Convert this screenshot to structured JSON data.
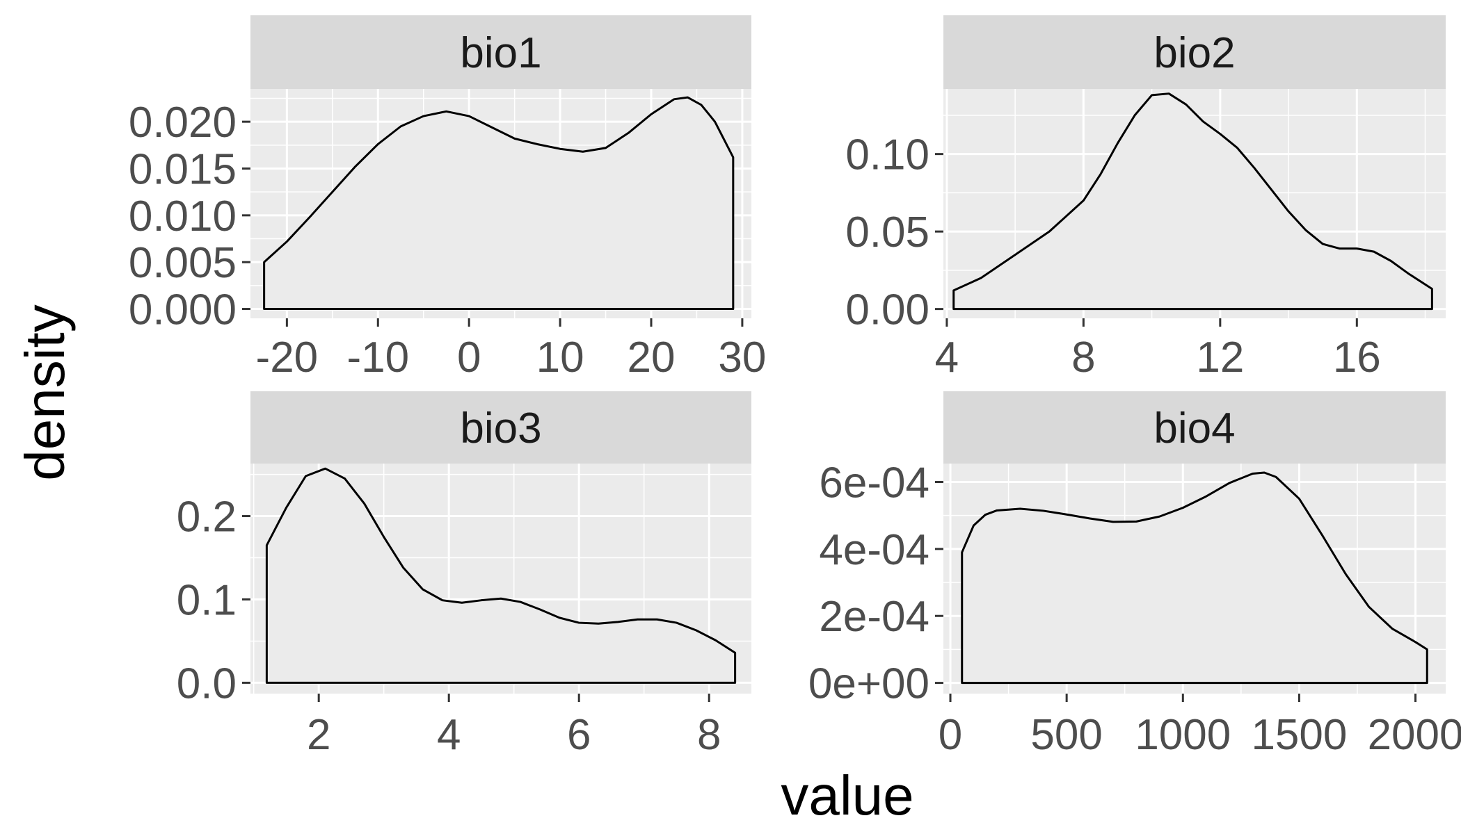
{
  "figure": {
    "xlabel": "value",
    "ylabel": "density"
  },
  "chart_data": [
    {
      "type": "area",
      "title": "bio1",
      "xlim": [
        -24,
        31
      ],
      "ylim": [
        -0.001,
        0.0235
      ],
      "x_ticks": [
        -20,
        -10,
        0,
        10,
        20,
        30
      ],
      "x_tick_labels": [
        "-20",
        "-10",
        "0",
        "10",
        "20",
        "30"
      ],
      "y_ticks": [
        0,
        0.005,
        0.01,
        0.015,
        0.02
      ],
      "y_tick_labels": [
        "0.000",
        "0.005",
        "0.010",
        "0.015",
        "0.020"
      ],
      "x": [
        -22.5,
        -20,
        -17.5,
        -15,
        -12.5,
        -10,
        -7.5,
        -5,
        -2.5,
        0,
        2.5,
        5,
        7.5,
        10,
        12.5,
        15,
        17.5,
        20,
        22.5,
        24,
        25.5,
        27,
        29
      ],
      "y": [
        0.005,
        0.0072,
        0.0098,
        0.0125,
        0.0152,
        0.0176,
        0.0195,
        0.0206,
        0.0211,
        0.0206,
        0.0194,
        0.0182,
        0.0176,
        0.0171,
        0.0168,
        0.0172,
        0.0188,
        0.0208,
        0.0224,
        0.0226,
        0.0218,
        0.02,
        0.0162
      ]
    },
    {
      "type": "area",
      "title": "bio2",
      "xlim": [
        3.9,
        18.6
      ],
      "ylim": [
        -0.006,
        0.142
      ],
      "x_ticks": [
        4,
        8,
        12,
        16
      ],
      "x_tick_labels": [
        "4",
        "8",
        "12",
        "16"
      ],
      "y_ticks": [
        0,
        0.05,
        0.1
      ],
      "y_tick_labels": [
        "0.00",
        "0.05",
        "0.10"
      ],
      "x": [
        4.2,
        5,
        6,
        7,
        8,
        8.5,
        9,
        9.5,
        10,
        10.5,
        11,
        11.5,
        12,
        12.5,
        13,
        13.5,
        14,
        14.5,
        15,
        15.5,
        16,
        16.5,
        17,
        17.5,
        18.2
      ],
      "y": [
        0.012,
        0.02,
        0.035,
        0.05,
        0.07,
        0.087,
        0.107,
        0.125,
        0.138,
        0.139,
        0.132,
        0.121,
        0.113,
        0.104,
        0.091,
        0.077,
        0.063,
        0.051,
        0.042,
        0.039,
        0.039,
        0.037,
        0.031,
        0.023,
        0.013
      ]
    },
    {
      "type": "area",
      "title": "bio3",
      "xlim": [
        0.95,
        8.65
      ],
      "ylim": [
        -0.013,
        0.263
      ],
      "x_ticks": [
        2,
        4,
        6,
        8
      ],
      "x_tick_labels": [
        "2",
        "4",
        "6",
        "8"
      ],
      "y_ticks": [
        0,
        0.1,
        0.2
      ],
      "y_tick_labels": [
        "0.0",
        "0.1",
        "0.2"
      ],
      "x": [
        1.2,
        1.5,
        1.8,
        2.1,
        2.4,
        2.7,
        3.0,
        3.3,
        3.6,
        3.9,
        4.2,
        4.5,
        4.8,
        5.1,
        5.4,
        5.7,
        6.0,
        6.3,
        6.6,
        6.9,
        7.2,
        7.5,
        7.8,
        8.1,
        8.4
      ],
      "y": [
        0.165,
        0.21,
        0.248,
        0.257,
        0.245,
        0.215,
        0.175,
        0.138,
        0.112,
        0.099,
        0.096,
        0.099,
        0.101,
        0.097,
        0.088,
        0.078,
        0.072,
        0.071,
        0.073,
        0.076,
        0.076,
        0.072,
        0.063,
        0.051,
        0.036
      ]
    },
    {
      "type": "area",
      "title": "bio4",
      "xlim": [
        -30,
        2130
      ],
      "ylim": [
        -3.2e-05,
        0.000655
      ],
      "x_ticks": [
        0,
        500,
        1000,
        1500,
        2000
      ],
      "x_tick_labels": [
        "0",
        "500",
        "1000",
        "1500",
        "2000"
      ],
      "y_ticks": [
        0,
        0.0002,
        0.0004,
        0.0006
      ],
      "y_tick_labels": [
        "0e+00",
        "2e-04",
        "4e-04",
        "6e-04"
      ],
      "x": [
        50,
        100,
        150,
        200,
        300,
        400,
        500,
        600,
        700,
        800,
        900,
        1000,
        1100,
        1200,
        1300,
        1350,
        1400,
        1500,
        1600,
        1700,
        1800,
        1900,
        2000,
        2050
      ],
      "y": [
        0.00039,
        0.00047,
        0.000502,
        0.000515,
        0.00052,
        0.000514,
        0.000503,
        0.000491,
        0.000481,
        0.000482,
        0.000497,
        0.000523,
        0.000557,
        0.000597,
        0.000625,
        0.000628,
        0.000615,
        0.00055,
        0.00044,
        0.000325,
        0.000227,
        0.000162,
        0.000122,
        0.0001
      ]
    }
  ]
}
